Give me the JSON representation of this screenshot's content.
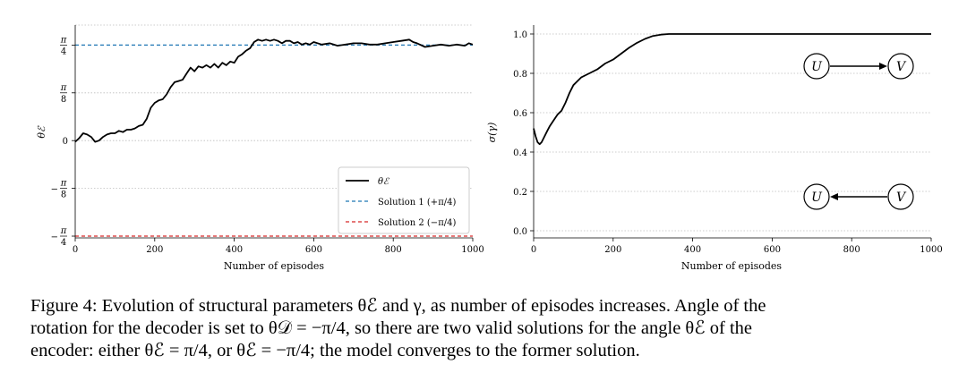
{
  "chart_data": [
    {
      "type": "line",
      "xlabel": "Number of episodes",
      "ylabel": "θℰ",
      "xlim": [
        0,
        1000
      ],
      "ylim": [
        -0.8,
        0.95
      ],
      "x_ticks": [
        "0",
        "200",
        "400",
        "600",
        "800",
        "1000"
      ],
      "y_ticks": [
        {
          "num": "π",
          "den": "4",
          "sign": ""
        },
        {
          "num": "π",
          "den": "8",
          "sign": ""
        },
        {
          "num": "0",
          "den": "",
          "sign": ""
        },
        {
          "num": "π",
          "den": "8",
          "sign": "−"
        },
        {
          "num": "π",
          "den": "4",
          "sign": "−"
        }
      ],
      "grid": "horizontal dotted",
      "legend_position": "bottom-right",
      "series": [
        {
          "name": "θℰ",
          "color": "#000000",
          "x": [
            0,
            10,
            20,
            30,
            40,
            50,
            60,
            70,
            80,
            90,
            100,
            110,
            120,
            130,
            140,
            150,
            160,
            170,
            180,
            190,
            200,
            210,
            220,
            230,
            240,
            250,
            260,
            270,
            280,
            290,
            300,
            310,
            320,
            330,
            340,
            350,
            360,
            370,
            380,
            390,
            400,
            410,
            420,
            430,
            440,
            450,
            460,
            470,
            480,
            490,
            500,
            510,
            520,
            530,
            540,
            550,
            560,
            570,
            580,
            590,
            600,
            620,
            640,
            660,
            680,
            700,
            720,
            740,
            760,
            780,
            800,
            820,
            840,
            850,
            860,
            880,
            900,
            920,
            940,
            960,
            980,
            990,
            1000
          ],
          "values": [
            -0.01,
            0.02,
            0.06,
            0.05,
            0.03,
            -0.01,
            0.0,
            0.03,
            0.05,
            0.06,
            0.06,
            0.08,
            0.07,
            0.09,
            0.09,
            0.1,
            0.12,
            0.13,
            0.18,
            0.27,
            0.31,
            0.33,
            0.34,
            0.38,
            0.44,
            0.48,
            0.49,
            0.5,
            0.55,
            0.6,
            0.57,
            0.61,
            0.6,
            0.62,
            0.6,
            0.63,
            0.6,
            0.64,
            0.62,
            0.65,
            0.64,
            0.69,
            0.71,
            0.74,
            0.76,
            0.81,
            0.83,
            0.82,
            0.83,
            0.82,
            0.83,
            0.82,
            0.8,
            0.82,
            0.82,
            0.8,
            0.81,
            0.79,
            0.8,
            0.79,
            0.81,
            0.79,
            0.8,
            0.78,
            0.79,
            0.8,
            0.8,
            0.79,
            0.79,
            0.8,
            0.81,
            0.82,
            0.83,
            0.81,
            0.8,
            0.77,
            0.78,
            0.79,
            0.78,
            0.79,
            0.78,
            0.8,
            0.79
          ]
        },
        {
          "name": "Solution 1 (+π/4)",
          "color": "#1f77b4",
          "style": "dashed",
          "constant": 0.7854
        },
        {
          "name": "Solution 2 (−π/4)",
          "color": "#d62728",
          "style": "dashed",
          "constant": -0.7854
        }
      ]
    },
    {
      "type": "line",
      "xlabel": "Number of episodes",
      "ylabel": "σ(γ)",
      "xlim": [
        0,
        1000
      ],
      "ylim": [
        0,
        1
      ],
      "x_ticks": [
        "0",
        "200",
        "400",
        "600",
        "800",
        "1000"
      ],
      "y_ticks": [
        "1.0",
        "0.8",
        "0.6",
        "0.4",
        "0.2",
        "0.0"
      ],
      "grid": "horizontal dotted",
      "series": [
        {
          "name": "σ(γ)",
          "color": "#000000",
          "x": [
            0,
            5,
            10,
            15,
            20,
            25,
            30,
            35,
            40,
            50,
            60,
            70,
            80,
            90,
            100,
            120,
            140,
            160,
            180,
            200,
            220,
            240,
            260,
            280,
            300,
            320,
            340,
            360,
            400,
            500,
            600,
            700,
            800,
            900,
            1000
          ],
          "values": [
            0.52,
            0.48,
            0.45,
            0.44,
            0.45,
            0.47,
            0.49,
            0.51,
            0.53,
            0.56,
            0.59,
            0.61,
            0.65,
            0.7,
            0.74,
            0.78,
            0.8,
            0.82,
            0.85,
            0.87,
            0.9,
            0.93,
            0.955,
            0.975,
            0.99,
            0.997,
            1.0,
            1.0,
            1.0,
            1.0,
            1.0,
            1.0,
            1.0,
            1.0,
            1.0
          ]
        }
      ],
      "diagrams": [
        {
          "from": "U",
          "to": "V",
          "direction": "right"
        },
        {
          "from": "V",
          "to": "U",
          "direction": "left"
        }
      ]
    }
  ],
  "caption": {
    "line1": "Figure 4: Evolution of structural parameters θℰ and γ, as number of episodes increases. Angle of the",
    "line2": "rotation for the decoder is set to θ𝒟 = −π/4, so there are two valid solutions for the angle θℰ of the",
    "line3": "encoder: either θℰ = π/4, or θℰ = −π/4; the model converges to the former solution."
  }
}
